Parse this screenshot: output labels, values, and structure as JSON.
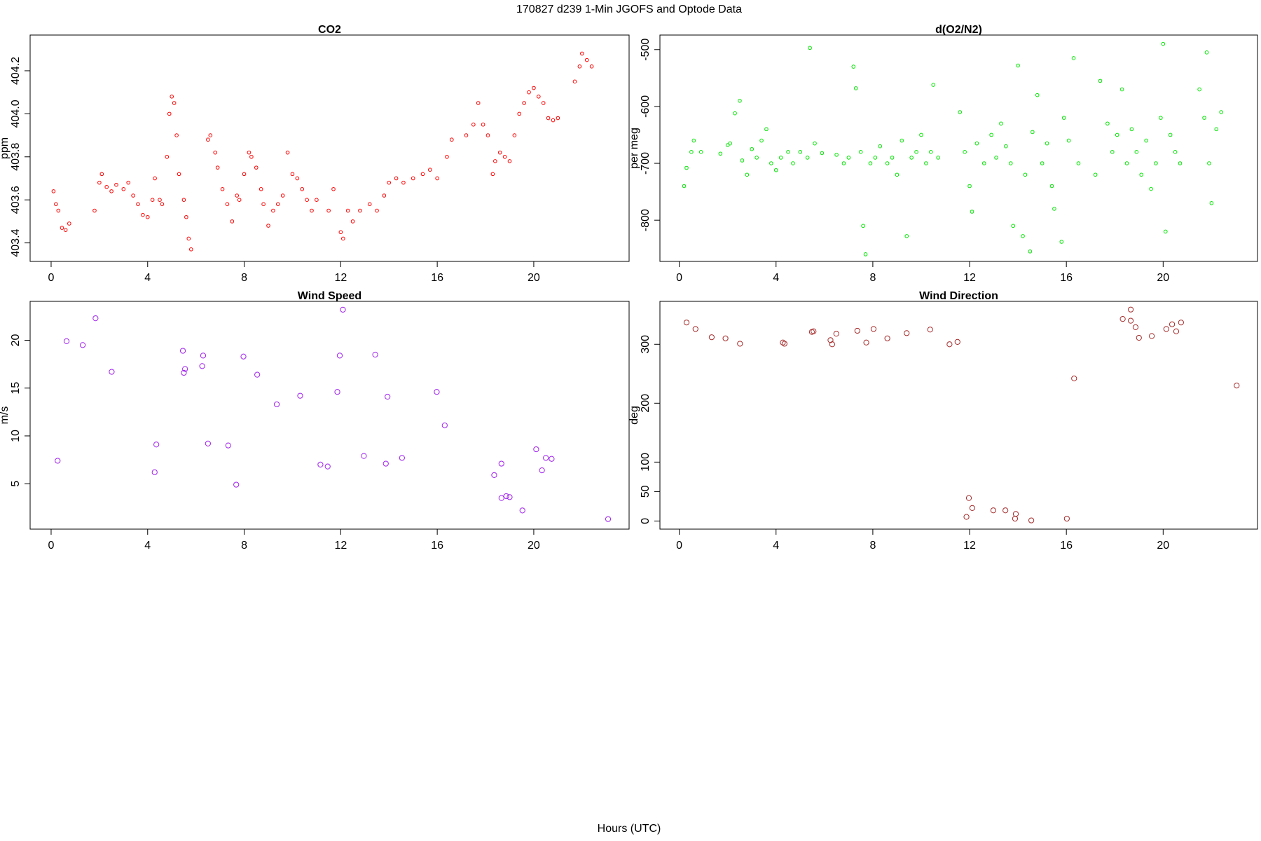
{
  "title": "170827   d239   1-Min  JGOFS and Optode Data",
  "xlabel": "Hours (UTC)",
  "chart_data": [
    {
      "type": "scatter",
      "title": "CO2",
      "ylabel": "ppm",
      "color": "#ff0000",
      "xlim": [
        -0.87,
        23.95
      ],
      "xticks": [
        0,
        4,
        8,
        12,
        16,
        20
      ],
      "ylim": [
        403.314,
        404.366
      ],
      "yticks": [
        403.4,
        403.6,
        403.8,
        {
          "value": 404,
          "label": "404.0"
        },
        404.2
      ],
      "x": [
        0.1,
        0.2,
        0.3,
        0.45,
        0.6,
        0.75,
        1.8,
        2.0,
        2.1,
        2.3,
        2.5,
        2.7,
        3.0,
        3.2,
        3.4,
        3.6,
        3.8,
        4.0,
        4.2,
        4.3,
        4.5,
        4.6,
        4.8,
        4.9,
        5.0,
        5.1,
        5.2,
        5.3,
        5.5,
        5.6,
        5.7,
        5.8,
        6.5,
        6.6,
        6.8,
        6.9,
        7.1,
        7.3,
        7.5,
        7.7,
        7.8,
        8.0,
        8.2,
        8.3,
        8.5,
        8.7,
        8.8,
        9.0,
        9.2,
        9.4,
        9.6,
        9.8,
        10.0,
        10.2,
        10.4,
        10.6,
        10.8,
        11.0,
        11.5,
        11.7,
        12.0,
        12.1,
        12.3,
        12.5,
        12.8,
        13.2,
        13.5,
        13.8,
        14.0,
        14.3,
        14.6,
        15.0,
        15.4,
        15.7,
        16.0,
        16.4,
        16.6,
        17.2,
        17.5,
        17.7,
        17.9,
        18.1,
        18.3,
        18.4,
        18.6,
        18.8,
        19.0,
        19.2,
        19.4,
        19.6,
        19.8,
        20.0,
        20.2,
        20.4,
        20.6,
        20.8,
        21.0,
        21.7,
        21.9,
        22.0,
        22.2,
        22.4
      ],
      "values": [
        403.64,
        403.58,
        403.55,
        403.47,
        403.46,
        403.49,
        403.55,
        403.68,
        403.72,
        403.66,
        403.64,
        403.67,
        403.65,
        403.68,
        403.62,
        403.58,
        403.53,
        403.52,
        403.6,
        403.7,
        403.6,
        403.58,
        403.8,
        404.0,
        404.08,
        404.05,
        403.9,
        403.72,
        403.6,
        403.52,
        403.42,
        403.37,
        403.88,
        403.9,
        403.82,
        403.75,
        403.65,
        403.58,
        403.5,
        403.62,
        403.6,
        403.72,
        403.82,
        403.8,
        403.75,
        403.65,
        403.58,
        403.48,
        403.55,
        403.58,
        403.62,
        403.82,
        403.72,
        403.7,
        403.65,
        403.6,
        403.55,
        403.6,
        403.55,
        403.65,
        403.45,
        403.42,
        403.55,
        403.5,
        403.55,
        403.58,
        403.55,
        403.62,
        403.68,
        403.7,
        403.68,
        403.7,
        403.72,
        403.74,
        403.7,
        403.8,
        403.88,
        403.9,
        403.95,
        404.05,
        403.95,
        403.9,
        403.72,
        403.78,
        403.82,
        403.8,
        403.78,
        403.9,
        404.0,
        404.05,
        404.1,
        404.12,
        404.08,
        404.05,
        403.98,
        403.97,
        403.98,
        404.15,
        404.22,
        404.28,
        404.25,
        404.22
      ]
    },
    {
      "type": "scatter",
      "title": "d(O2/N2)",
      "ylabel": "per meg",
      "color": "#00e600",
      "xlim": [
        -0.8,
        23.9
      ],
      "xticks": [
        0,
        4,
        8,
        12,
        16,
        20
      ],
      "ylim": [
        -872.5,
        -474.4
      ],
      "yticks": [
        -800,
        -700,
        -600,
        -500
      ],
      "x": [
        0.2,
        0.3,
        0.5,
        0.6,
        0.9,
        1.7,
        2.0,
        2.1,
        2.3,
        2.5,
        2.6,
        2.8,
        3.0,
        3.2,
        3.4,
        3.6,
        3.8,
        4.0,
        4.2,
        4.5,
        4.7,
        5.0,
        5.3,
        5.4,
        5.6,
        5.9,
        6.5,
        6.8,
        7.0,
        7.2,
        7.3,
        7.5,
        7.6,
        7.7,
        7.9,
        8.1,
        8.3,
        8.6,
        8.8,
        9.0,
        9.2,
        9.4,
        9.6,
        9.8,
        10.0,
        10.2,
        10.4,
        10.5,
        10.7,
        11.6,
        11.8,
        12.0,
        12.1,
        12.3,
        12.6,
        12.9,
        13.1,
        13.3,
        13.5,
        13.7,
        13.8,
        14.0,
        14.2,
        14.3,
        14.5,
        14.6,
        14.8,
        15.0,
        15.2,
        15.4,
        15.5,
        15.8,
        15.9,
        16.1,
        16.3,
        16.5,
        17.2,
        17.4,
        17.7,
        17.9,
        18.1,
        18.3,
        18.5,
        18.7,
        18.9,
        19.1,
        19.3,
        19.5,
        19.7,
        19.9,
        20.0,
        20.1,
        20.3,
        20.5,
        20.7,
        21.5,
        21.7,
        21.8,
        21.9,
        22.0,
        22.2,
        22.4
      ],
      "values": [
        -740,
        -708,
        -680,
        -660,
        -680,
        -683,
        -668,
        -665,
        -612,
        -590,
        -695,
        -720,
        -675,
        -690,
        -660,
        -640,
        -700,
        -712,
        -690,
        -680,
        -700,
        -680,
        -690,
        -497,
        -665,
        -682,
        -685,
        -700,
        -690,
        -530,
        -568,
        -680,
        -810,
        -860,
        -700,
        -690,
        -670,
        -700,
        -690,
        -720,
        -660,
        -828,
        -690,
        -680,
        -650,
        -700,
        -680,
        -562,
        -690,
        -610,
        -680,
        -740,
        -785,
        -665,
        -700,
        -650,
        -690,
        -630,
        -670,
        -700,
        -810,
        -528,
        -828,
        -720,
        -855,
        -645,
        -580,
        -700,
        -665,
        -740,
        -780,
        -838,
        -620,
        -660,
        -515,
        -700,
        -720,
        -555,
        -630,
        -680,
        -650,
        -570,
        -700,
        -640,
        -680,
        -720,
        -660,
        -745,
        -700,
        -620,
        -490,
        -820,
        -650,
        -680,
        -700,
        -570,
        -620,
        -505,
        -700,
        -770,
        -640,
        -610
      ]
    },
    {
      "type": "scatter",
      "title": "Wind Speed",
      "ylabel": "m/s",
      "color": "#a020f0",
      "xlim": [
        -0.87,
        23.95
      ],
      "xticks": [
        0,
        4,
        8,
        12,
        16,
        20
      ],
      "ylim": [
        0.25,
        24.07
      ],
      "yticks": [
        5,
        10,
        15,
        20
      ],
      "x": [
        0.27,
        0.64,
        1.31,
        1.84,
        2.51,
        4.29,
        4.36,
        5.46,
        5.5,
        5.55,
        6.26,
        6.3,
        6.5,
        7.34,
        7.67,
        7.97,
        8.54,
        9.35,
        10.32,
        11.16,
        11.46,
        11.86,
        11.96,
        12.09,
        12.96,
        13.43,
        13.87,
        13.94,
        14.54,
        15.98,
        16.31,
        18.36,
        18.66,
        18.66,
        18.86,
        19.0,
        19.53,
        20.1,
        20.34,
        20.5,
        20.74,
        23.08
      ],
      "values": [
        7.4,
        19.9,
        19.5,
        22.3,
        16.7,
        6.2,
        9.1,
        18.9,
        16.6,
        17.0,
        17.3,
        18.4,
        9.2,
        9.0,
        4.9,
        18.3,
        16.4,
        13.3,
        14.2,
        7.0,
        6.8,
        14.6,
        18.4,
        23.2,
        7.9,
        18.5,
        7.1,
        14.1,
        7.7,
        14.6,
        11.1,
        5.9,
        3.5,
        7.1,
        3.7,
        3.6,
        2.2,
        8.6,
        6.4,
        7.7,
        7.6,
        1.3
      ]
    },
    {
      "type": "scatter",
      "title": "Wind Direction",
      "ylabel": "deg",
      "color": "#a52a2a",
      "xlim": [
        -0.8,
        23.9
      ],
      "xticks": [
        0,
        4,
        8,
        12,
        16,
        20
      ],
      "ylim": [
        -13.8,
        372.9
      ],
      "yticks": [
        0,
        50,
        100,
        200,
        300
      ],
      "x": [
        0.3,
        0.67,
        1.34,
        1.91,
        2.51,
        4.28,
        4.35,
        5.48,
        5.55,
        6.25,
        6.32,
        6.49,
        7.36,
        7.73,
        8.03,
        8.6,
        9.4,
        10.37,
        11.17,
        11.5,
        11.87,
        11.97,
        12.11,
        12.98,
        13.48,
        13.91,
        13.88,
        14.55,
        16.02,
        16.32,
        18.33,
        18.66,
        18.66,
        18.86,
        19.0,
        19.53,
        20.13,
        20.37,
        20.54,
        20.74,
        23.04
      ],
      "values": [
        337,
        326,
        312,
        310,
        301,
        303,
        301,
        321,
        322,
        307,
        300,
        318,
        323,
        303,
        326,
        310,
        319,
        325,
        300,
        304,
        7,
        39,
        22,
        18,
        18,
        12,
        4,
        1,
        4,
        242,
        343,
        359,
        340,
        329,
        311,
        314,
        326,
        334,
        322,
        337,
        230
      ]
    }
  ]
}
